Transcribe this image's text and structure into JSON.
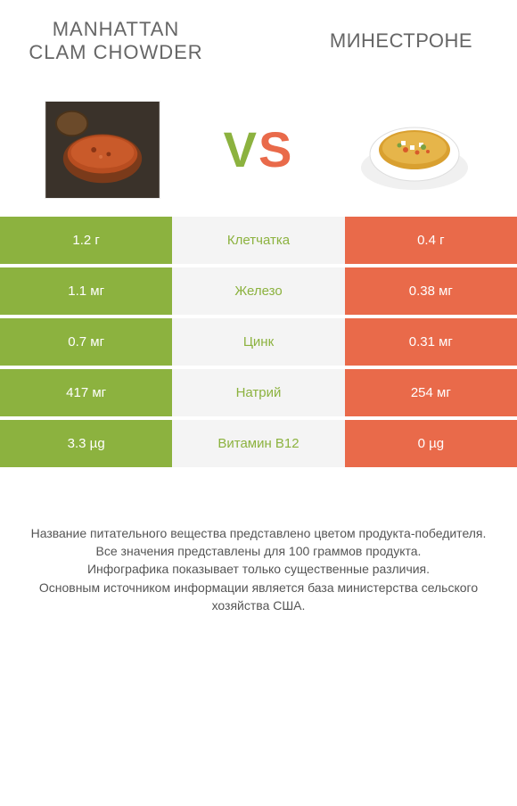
{
  "header": {
    "left_title": "MANHATTAN CLAM CHOWDER",
    "right_title": "МИНЕСТРОНЕ"
  },
  "vs": {
    "v": "V",
    "s": "S"
  },
  "colors": {
    "left": "#8cb23f",
    "right": "#e96a4a",
    "mid_bg": "#f4f4f4",
    "text": "#555555"
  },
  "rows": [
    {
      "left": "1.2 г",
      "label": "Клетчатка",
      "right": "0.4 г",
      "winner": "left"
    },
    {
      "left": "1.1 мг",
      "label": "Железо",
      "right": "0.38 мг",
      "winner": "left"
    },
    {
      "left": "0.7 мг",
      "label": "Цинк",
      "right": "0.31 мг",
      "winner": "left"
    },
    {
      "left": "417 мг",
      "label": "Натрий",
      "right": "254 мг",
      "winner": "left"
    },
    {
      "left": "3.3 µg",
      "label": "Витамин B12",
      "right": "0 µg",
      "winner": "left"
    }
  ],
  "footer": "Название питательного вещества представлено цветом продукта-победителя.\nВсе значения представлены для 100 граммов продукта.\nИнфографика показывает только существенные различия.\nОсновным источником информации является база министерства сельского хозяйства США."
}
